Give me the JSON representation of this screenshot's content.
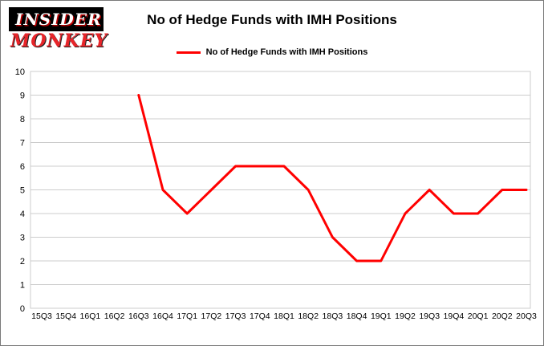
{
  "header": {
    "logo": {
      "line1": "INSIDER",
      "line2": "MONKEY"
    },
    "title": "No of Hedge Funds with IMH Positions"
  },
  "legend": {
    "label": "No of Hedge Funds with IMH Positions",
    "color": "#ff0000"
  },
  "chart_data": {
    "type": "line",
    "title": "No of Hedge Funds with IMH Positions",
    "categories": [
      "15Q3",
      "15Q4",
      "16Q1",
      "16Q2",
      "16Q3",
      "16Q4",
      "17Q1",
      "17Q2",
      "17Q3",
      "17Q4",
      "18Q1",
      "18Q2",
      "18Q3",
      "18Q4",
      "19Q1",
      "19Q2",
      "19Q3",
      "19Q4",
      "20Q1",
      "20Q2",
      "20Q3"
    ],
    "series": [
      {
        "name": "No of Hedge Funds with IMH Positions",
        "color": "#ff0000",
        "values": [
          null,
          null,
          null,
          null,
          9,
          5,
          4,
          5,
          6,
          6,
          6,
          5,
          3,
          2,
          2,
          4,
          5,
          4,
          4,
          5,
          5
        ]
      }
    ],
    "ylabel": "",
    "xlabel": "",
    "ylim": [
      0,
      10
    ],
    "yticks": [
      0,
      1,
      2,
      3,
      4,
      5,
      6,
      7,
      8,
      9,
      10
    ],
    "grid": true,
    "legend_position": "top"
  }
}
